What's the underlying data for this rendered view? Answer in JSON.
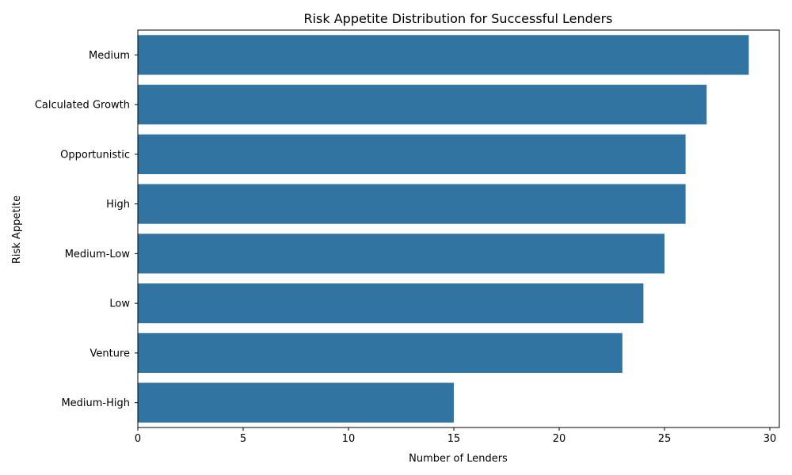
{
  "chart_data": {
    "type": "bar",
    "orientation": "horizontal",
    "title": "Risk Appetite Distribution for Successful Lenders",
    "xlabel": "Number of Lenders",
    "ylabel": "Risk Appetite",
    "categories": [
      "Medium",
      "Calculated Growth",
      "Opportunistic",
      "High",
      "Medium-Low",
      "Low",
      "Venture",
      "Medium-High"
    ],
    "values": [
      29,
      27,
      26,
      26,
      25,
      24,
      23,
      15
    ],
    "xlim": [
      0,
      30.45
    ],
    "xticks": [
      0,
      5,
      10,
      15,
      20,
      25,
      30
    ],
    "grid": false,
    "legend": false,
    "bar_color": "#3274a1"
  }
}
